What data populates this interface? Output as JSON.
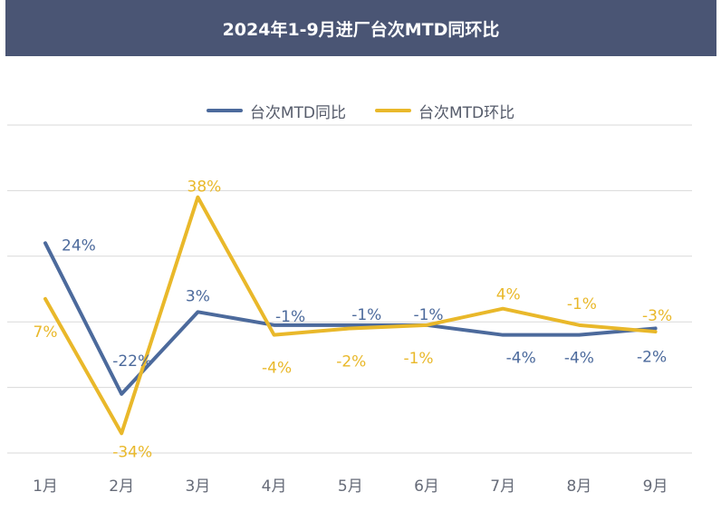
{
  "title": "2024年1-9月进厂台次MTD同环比",
  "chart_data": {
    "type": "line",
    "title": "2024年1-9月进厂台次MTD同环比",
    "categories": [
      "1月",
      "2月",
      "3月",
      "4月",
      "5月",
      "6月",
      "7月",
      "8月",
      "9月"
    ],
    "series": [
      {
        "name": "台次MTD同比",
        "color": "#4c6a9c",
        "values": [
          0.24,
          -0.22,
          0.03,
          -0.01,
          -0.01,
          -0.01,
          -0.04,
          -0.04,
          -0.02
        ],
        "labels": [
          "24%",
          "-22%",
          "3%",
          "-1%",
          "-1%",
          "-1%",
          "-4%",
          "-4%",
          "-2%"
        ]
      },
      {
        "name": "台次MTD环比",
        "color": "#e9b82a",
        "values": [
          0.07,
          -0.34,
          0.38,
          -0.04,
          -0.02,
          -0.01,
          0.04,
          -0.01,
          -0.03
        ],
        "labels": [
          "7%",
          "-34%",
          "38%",
          "-4%",
          "-2%",
          "-1%",
          "4%",
          "-1%",
          "-3%"
        ]
      }
    ],
    "ylim": [
      -0.4,
      0.6
    ],
    "grid": true,
    "legend": "top"
  }
}
